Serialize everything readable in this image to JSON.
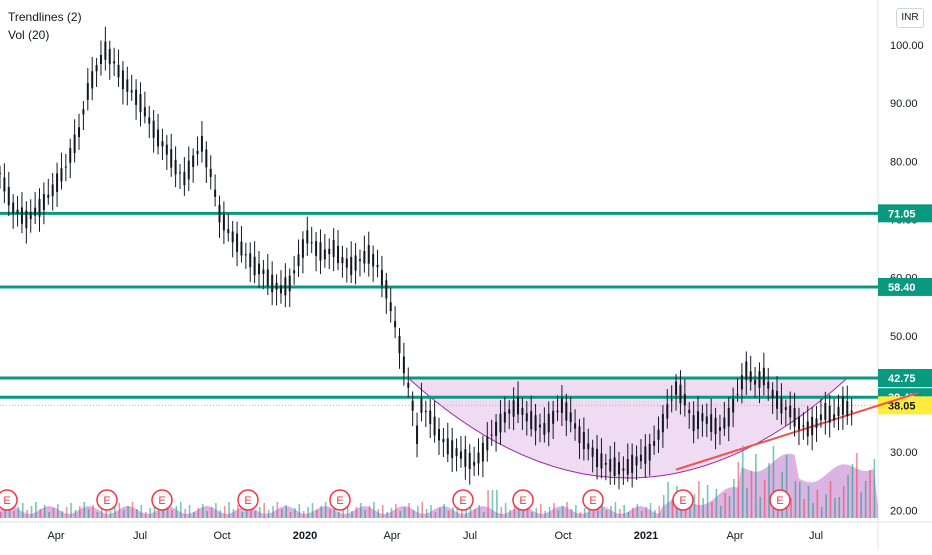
{
  "legend": {
    "line1": "Trendlines (2)",
    "line2": "Vol (20)"
  },
  "currency": "INR",
  "chart_data": {
    "type": "candlestick",
    "x_ticks": [
      "Apr",
      "Jul",
      "Oct",
      "2020",
      "Apr",
      "Jul",
      "Oct",
      "2021",
      "Apr",
      "Jul"
    ],
    "y_ticks": [
      "20.00",
      "30.00",
      "40.00",
      "50.00",
      "60.00",
      "70.00",
      "80.00",
      "90.00",
      "100.00"
    ],
    "ylim": [
      18,
      106
    ],
    "price_points": [
      [
        0,
        78
      ],
      [
        3,
        72
      ],
      [
        6,
        70
      ],
      [
        9,
        72
      ],
      [
        12,
        75
      ],
      [
        15,
        79
      ],
      [
        18,
        85
      ],
      [
        20,
        92
      ],
      [
        22,
        96
      ],
      [
        24,
        99
      ],
      [
        26,
        97
      ],
      [
        28,
        94
      ],
      [
        30,
        92
      ],
      [
        32,
        90
      ],
      [
        34,
        87
      ],
      [
        36,
        84
      ],
      [
        38,
        82
      ],
      [
        40,
        79
      ],
      [
        42,
        77
      ],
      [
        44,
        80
      ],
      [
        46,
        83
      ],
      [
        48,
        78
      ],
      [
        50,
        71
      ],
      [
        52,
        68
      ],
      [
        54,
        66
      ],
      [
        56,
        64
      ],
      [
        58,
        62
      ],
      [
        60,
        61
      ],
      [
        62,
        59
      ],
      [
        64,
        58
      ],
      [
        66,
        59
      ],
      [
        68,
        63
      ],
      [
        70,
        67
      ],
      [
        72,
        65
      ],
      [
        74,
        64
      ],
      [
        76,
        65
      ],
      [
        78,
        63
      ],
      [
        80,
        62
      ],
      [
        82,
        63
      ],
      [
        84,
        64
      ],
      [
        86,
        62
      ],
      [
        88,
        58
      ],
      [
        90,
        52
      ],
      [
        92,
        45
      ],
      [
        94,
        38
      ],
      [
        95,
        33
      ],
      [
        96,
        38
      ],
      [
        98,
        36
      ],
      [
        100,
        33
      ],
      [
        102,
        31
      ],
      [
        104,
        30
      ],
      [
        106,
        29
      ],
      [
        108,
        28
      ],
      [
        110,
        30
      ],
      [
        112,
        33
      ],
      [
        114,
        35
      ],
      [
        116,
        37
      ],
      [
        118,
        38
      ],
      [
        120,
        36
      ],
      [
        122,
        35
      ],
      [
        124,
        34
      ],
      [
        126,
        36
      ],
      [
        128,
        38
      ],
      [
        130,
        36
      ],
      [
        132,
        33
      ],
      [
        134,
        31
      ],
      [
        136,
        29
      ],
      [
        138,
        28
      ],
      [
        140,
        27.5
      ],
      [
        142,
        27
      ],
      [
        144,
        28
      ],
      [
        146,
        29
      ],
      [
        148,
        30
      ],
      [
        150,
        33
      ],
      [
        152,
        37
      ],
      [
        154,
        41
      ],
      [
        156,
        39
      ],
      [
        158,
        35
      ],
      [
        160,
        36
      ],
      [
        162,
        35
      ],
      [
        164,
        34
      ],
      [
        166,
        36
      ],
      [
        168,
        40
      ],
      [
        170,
        44
      ],
      [
        172,
        42
      ],
      [
        174,
        43
      ],
      [
        176,
        40
      ],
      [
        178,
        38
      ],
      [
        180,
        37
      ],
      [
        182,
        35
      ],
      [
        184,
        34
      ],
      [
        186,
        35
      ],
      [
        188,
        37
      ],
      [
        190,
        36
      ],
      [
        192,
        38
      ],
      [
        194,
        37
      ]
    ],
    "volume_events": [
      "E",
      "E",
      "E",
      "E",
      "E",
      "E",
      "E",
      "E",
      "E",
      "E",
      "E",
      "E",
      "E"
    ],
    "levels": [
      {
        "value": 71.05,
        "label": "71.05",
        "color": "#089981"
      },
      {
        "value": 58.4,
        "label": "58.40",
        "color": "#089981"
      },
      {
        "value": 42.75,
        "label": "42.75",
        "color": "#089981"
      },
      {
        "value": 39.45,
        "label": "39.45",
        "color": "#089981"
      }
    ],
    "current_price": {
      "value": 38.05,
      "label": "38.05",
      "color": "#ffeb3b"
    },
    "trendline": {
      "from": [
        154,
        27
      ],
      "to": [
        200,
        38
      ],
      "color": "#f05350"
    },
    "colors": {
      "up": "#089981",
      "down": "#f23645",
      "candle": "#131722",
      "cup_fill": "#e1bee7",
      "cup_stroke": "#9c27b0"
    }
  }
}
